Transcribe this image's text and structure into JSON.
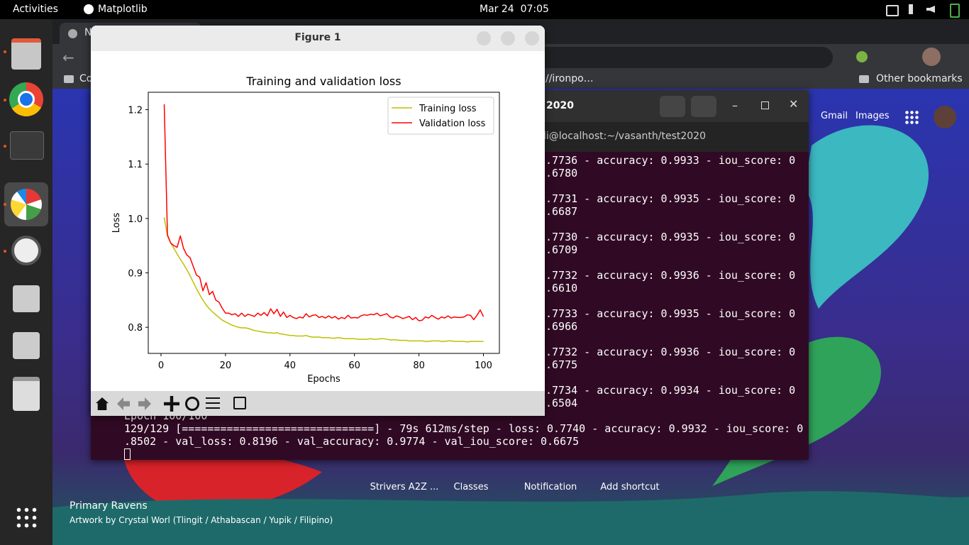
{
  "topbar": {
    "activities": "Activities",
    "app": "Matplotlib",
    "clock": "Mar 24  07:05"
  },
  "browser": {
    "tab": "N",
    "bookmarks": [
      "Co",
      "//ironpo…",
      "Other bookmarks"
    ],
    "links": [
      "Gmail",
      "Images"
    ],
    "shortcuts": [
      "Strivers A2Z ...",
      "Classes",
      "Notification",
      "Add shortcut"
    ],
    "wallpaper_title": "Primary Ravens",
    "wallpaper_credit": "Artwork by Crystal Worl (Tlingit / Athabascan / Yupik / Filipino)"
  },
  "terminal": {
    "title": "2020",
    "tab": "li@localhost:~/vasanth/test2020",
    "lines": [
      ".7736 - accuracy: 0.9933 - iou_score: 0",
      ".6780",
      ".7731 - accuracy: 0.9935 - iou_score: 0",
      ".6687",
      ".7730 - accuracy: 0.9935 - iou_score: 0",
      ".6709",
      ".7732 - accuracy: 0.9936 - iou_score: 0",
      ".6610",
      ".7733 - accuracy: 0.9935 - iou_score: 0",
      ".6966",
      ".7732 - accuracy: 0.9936 - iou_score: 0",
      ".6775",
      ".7734 - accuracy: 0.9934 - iou_score: 0",
      ".6504"
    ],
    "last": [
      "Epoch 100/100",
      "129/129 [==============================] - 79s 612ms/step - loss: 0.7740 - accuracy: 0.9932 - iou_score: 0",
      ".8502 - val_loss: 0.8196 - val_accuracy: 0.9774 - val_iou_score: 0.6675"
    ]
  },
  "figure": {
    "title": "Figure 1"
  },
  "chart_data": {
    "type": "line",
    "title": "Training and validation loss",
    "x_label": "Epochs",
    "y_label": "Loss",
    "x": [
      1,
      2,
      3,
      4,
      5,
      6,
      7,
      8,
      9,
      10,
      11,
      12,
      13,
      14,
      15,
      16,
      17,
      18,
      19,
      20,
      21,
      22,
      23,
      24,
      25,
      26,
      27,
      28,
      29,
      30,
      31,
      32,
      33,
      34,
      35,
      36,
      37,
      38,
      39,
      40,
      41,
      42,
      43,
      44,
      45,
      46,
      47,
      48,
      49,
      50,
      51,
      52,
      53,
      54,
      55,
      56,
      57,
      58,
      59,
      60,
      61,
      62,
      63,
      64,
      65,
      66,
      67,
      68,
      69,
      70,
      71,
      72,
      73,
      74,
      75,
      76,
      77,
      78,
      79,
      80,
      81,
      82,
      83,
      84,
      85,
      86,
      87,
      88,
      89,
      90,
      91,
      92,
      93,
      94,
      95,
      96,
      97,
      98,
      99,
      100
    ],
    "series": [
      {
        "name": "Training loss",
        "color": "#bfbf00",
        "values": [
          1.002,
          0.968,
          0.955,
          0.945,
          0.935,
          0.925,
          0.916,
          0.906,
          0.895,
          0.883,
          0.871,
          0.86,
          0.85,
          0.841,
          0.834,
          0.828,
          0.823,
          0.818,
          0.813,
          0.81,
          0.807,
          0.804,
          0.802,
          0.8,
          0.799,
          0.799,
          0.798,
          0.796,
          0.794,
          0.793,
          0.792,
          0.791,
          0.79,
          0.79,
          0.789,
          0.79,
          0.788,
          0.787,
          0.786,
          0.785,
          0.785,
          0.784,
          0.784,
          0.784,
          0.785,
          0.783,
          0.782,
          0.782,
          0.782,
          0.781,
          0.781,
          0.781,
          0.78,
          0.78,
          0.781,
          0.78,
          0.779,
          0.779,
          0.779,
          0.779,
          0.778,
          0.778,
          0.778,
          0.778,
          0.779,
          0.778,
          0.778,
          0.779,
          0.779,
          0.778,
          0.777,
          0.777,
          0.777,
          0.776,
          0.776,
          0.776,
          0.775,
          0.775,
          0.775,
          0.775,
          0.775,
          0.774,
          0.774,
          0.775,
          0.775,
          0.775,
          0.774,
          0.774,
          0.775,
          0.775,
          0.774,
          0.774,
          0.774,
          0.774,
          0.773,
          0.774,
          0.774,
          0.774,
          0.774,
          0.774
        ]
      },
      {
        "name": "Validation loss",
        "color": "#ff0000",
        "values": [
          1.21,
          0.97,
          0.955,
          0.95,
          0.947,
          0.968,
          0.945,
          0.933,
          0.928,
          0.912,
          0.896,
          0.892,
          0.867,
          0.882,
          0.86,
          0.866,
          0.85,
          0.846,
          0.835,
          0.826,
          0.826,
          0.823,
          0.825,
          0.82,
          0.826,
          0.82,
          0.824,
          0.822,
          0.82,
          0.826,
          0.822,
          0.827,
          0.821,
          0.834,
          0.825,
          0.833,
          0.82,
          0.828,
          0.818,
          0.822,
          0.818,
          0.816,
          0.819,
          0.817,
          0.825,
          0.819,
          0.822,
          0.823,
          0.818,
          0.82,
          0.817,
          0.821,
          0.817,
          0.82,
          0.815,
          0.818,
          0.816,
          0.822,
          0.817,
          0.818,
          0.817,
          0.821,
          0.823,
          0.822,
          0.824,
          0.823,
          0.826,
          0.821,
          0.823,
          0.825,
          0.819,
          0.817,
          0.821,
          0.819,
          0.816,
          0.818,
          0.82,
          0.814,
          0.818,
          0.812,
          0.813,
          0.819,
          0.817,
          0.822,
          0.818,
          0.815,
          0.819,
          0.817,
          0.821,
          0.817,
          0.819,
          0.818,
          0.818,
          0.819,
          0.823,
          0.822,
          0.814,
          0.822,
          0.832,
          0.8196
        ]
      }
    ],
    "xlim": [
      -3.95,
      104.95
    ],
    "ylim": [
      0.752,
      1.232
    ],
    "xticks": [
      0,
      20,
      40,
      60,
      80,
      100
    ],
    "yticks": [
      0.8,
      0.9,
      {
        "value": 1,
        "label": "1.0"
      },
      1.1,
      1.2
    ],
    "grid": false,
    "legend": "upper right"
  }
}
